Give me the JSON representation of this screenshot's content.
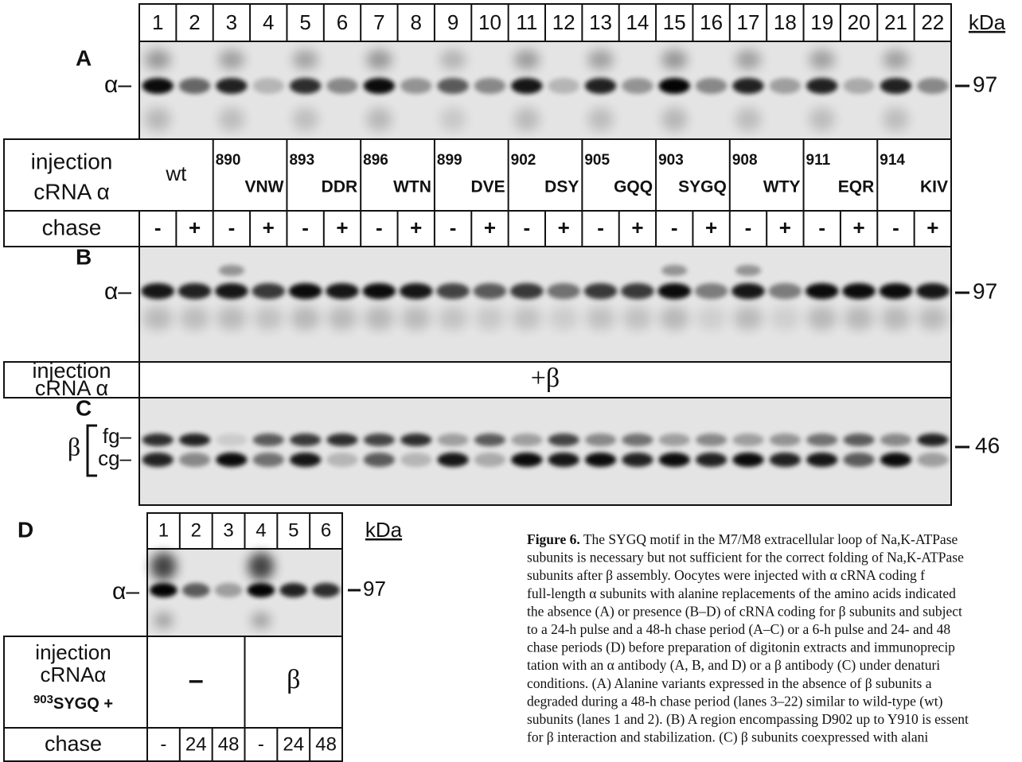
{
  "lane_numbers": [
    "1",
    "2",
    "3",
    "4",
    "5",
    "6",
    "7",
    "8",
    "9",
    "10",
    "11",
    "12",
    "13",
    "14",
    "15",
    "16",
    "17",
    "18",
    "19",
    "20",
    "21",
    "22"
  ],
  "unit": "kDa",
  "panel_a": {
    "label": "A",
    "band": "α–",
    "marker": "97"
  },
  "injection": {
    "label_lines": [
      "injection",
      "cRNA α"
    ],
    "mutants": [
      {
        "name": "wt"
      },
      {
        "number": "890",
        "name": "VNW"
      },
      {
        "number": "893",
        "name": "DDR"
      },
      {
        "number": "896",
        "name": "WTN"
      },
      {
        "number": "899",
        "name": "DVE"
      },
      {
        "number": "902",
        "name": "DSY"
      },
      {
        "number": "905",
        "name": "GQQ"
      },
      {
        "number": "903",
        "name": "SYGQ"
      },
      {
        "number": "908",
        "name": "WTY"
      },
      {
        "number": "911",
        "name": "EQR"
      },
      {
        "number": "914",
        "name": "KIV"
      }
    ]
  },
  "chase": {
    "label": "chase",
    "values": [
      "-",
      "+",
      "-",
      "+",
      "-",
      "+",
      "-",
      "+",
      "-",
      "+",
      "-",
      "+",
      "-",
      "+",
      "-",
      "+",
      "-",
      "+",
      "-",
      "+",
      "-",
      "+"
    ]
  },
  "panel_b": {
    "label": "B",
    "band": "α–",
    "marker": "97"
  },
  "injection_b": {
    "label_lines": [
      "injection",
      "cRNA α"
    ],
    "value": "+β"
  },
  "panel_c": {
    "label": "C",
    "subunit": "β",
    "upper": "fg–",
    "lower": "cg–",
    "marker": "46"
  },
  "panel_d": {
    "label": "D",
    "lanes": [
      "1",
      "2",
      "3",
      "4",
      "5",
      "6"
    ],
    "unit": "kDa",
    "band": "α–",
    "marker": "97",
    "injection_lines": [
      "injection",
      "cRNAα"
    ],
    "mutant_number": "903",
    "mutant_name": "SYGQ +",
    "conditions": [
      "–",
      "β"
    ],
    "chase_label": "chase",
    "chase_values": [
      "-",
      "24",
      "48",
      "-",
      "24",
      "48"
    ]
  },
  "caption": {
    "label": "Figure 6.",
    "lines": [
      " The SYGQ motif in the M7/M8 extracellular loop of Na,K-ATPase",
      "subunits is necessary but not sufficient for the correct folding of Na,K-ATPase",
      "subunits after β assembly. Oocytes were injected with α cRNA coding f",
      "full-length α subunits with alanine replacements of the amino acids indicated",
      "the absence (A) or presence (B–D) of cRNA coding for β subunits and subject",
      "to a 24-h pulse and a 48-h chase period (A–C) or a 6-h pulse and 24- and 48",
      "chase periods (D) before preparation of digitonin extracts and immunoprecip",
      "tation with an α antibody (A, B, and D) or a β antibody (C) under denaturi",
      "conditions. (A) Alanine variants expressed in the absence of β subunits a",
      "degraded during a 48-h chase period (lanes 3–22) similar to wild-type (wt)",
      "subunits (lanes 1 and 2). (B) A region encompassing D902 up to Y910 is essent",
      "for β interaction and stabilization. (C) β subunits coexpressed with alani"
    ]
  }
}
